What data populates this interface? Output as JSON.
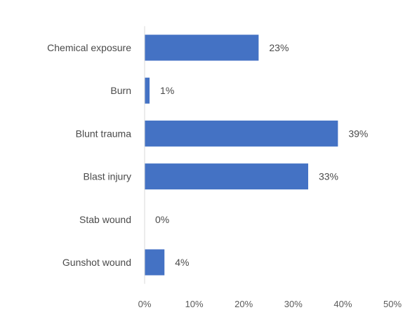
{
  "chart_data": {
    "type": "bar",
    "orientation": "horizontal",
    "categories": [
      "Chemical exposure",
      "Burn",
      "Blunt trauma",
      "Blast injury",
      "Stab wound",
      "Gunshot wound"
    ],
    "values": [
      23,
      1,
      39,
      33,
      0,
      4
    ],
    "data_labels": [
      "23%",
      "1%",
      "39%",
      "33%",
      "0%",
      "4%"
    ],
    "x_ticks": [
      "0%",
      "10%",
      "20%",
      "30%",
      "40%",
      "50%"
    ],
    "xlim": [
      0,
      50
    ],
    "title": "",
    "xlabel": "",
    "ylabel": "",
    "grid": false,
    "legend": "none",
    "bar_color": "#4472c4"
  }
}
